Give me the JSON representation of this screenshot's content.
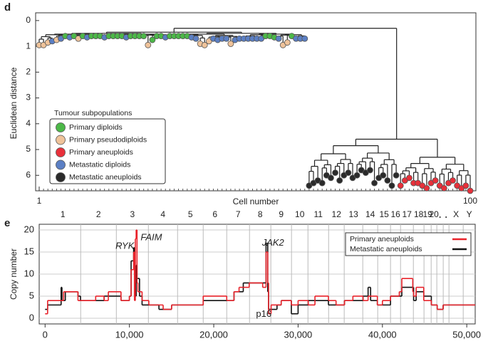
{
  "chart_data": [
    {
      "type": "dendrogram",
      "label": "d",
      "ylabel": "Euclidean distance",
      "xlabel": "Cell number",
      "ylim": [
        -0.3,
        6.6
      ],
      "yticks": [
        0,
        1,
        2,
        3,
        4,
        5,
        6
      ],
      "xlim": [
        1,
        100
      ],
      "xticks": [
        1,
        100
      ],
      "legend_title": "Tumour subpopulations",
      "legend": "lower left",
      "groups": [
        {
          "name": "Primary diploids",
          "color": "#4cb848"
        },
        {
          "name": "Primary pseudodiploids",
          "color": "#efc39a"
        },
        {
          "name": "Primary aneuploids",
          "color": "#e8303a"
        },
        {
          "name": "Metastatic diploids",
          "color": "#5b7fc4"
        },
        {
          "name": "Metastatic aneuploids",
          "color": "#2a2a2a"
        }
      ],
      "leaf_groups": [
        1,
        1,
        1,
        3,
        1,
        3,
        0,
        3,
        0,
        1,
        0,
        3,
        0,
        0,
        0,
        3,
        0,
        0,
        0,
        0,
        3,
        0,
        0,
        0,
        0,
        1,
        0,
        0,
        0,
        3,
        0,
        0,
        0,
        0,
        0,
        3,
        3,
        1,
        1,
        1,
        3,
        3,
        3,
        3,
        1,
        3,
        3,
        3,
        3,
        3,
        3,
        3,
        0,
        0,
        0,
        3,
        1,
        1,
        0,
        3,
        3,
        3,
        4,
        4,
        4,
        4,
        4,
        4,
        4,
        4,
        4,
        4,
        4,
        4,
        4,
        4,
        4,
        4,
        4,
        4,
        4,
        4,
        4,
        2,
        2,
        2,
        2,
        2,
        2,
        2,
        2,
        2,
        2,
        2,
        2,
        2,
        2,
        2,
        2,
        2
      ],
      "leaf_distances": [
        0.95,
        0.95,
        0.85,
        0.8,
        0.75,
        0.7,
        0.6,
        0.65,
        0.6,
        0.7,
        0.6,
        0.65,
        0.6,
        0.6,
        0.6,
        0.65,
        0.6,
        0.6,
        0.6,
        0.6,
        0.65,
        0.6,
        0.6,
        0.6,
        0.6,
        0.95,
        0.75,
        0.6,
        0.6,
        0.65,
        0.6,
        0.6,
        0.6,
        0.6,
        0.6,
        0.65,
        0.7,
        0.9,
        0.95,
        0.8,
        0.7,
        0.75,
        0.7,
        0.7,
        0.9,
        0.75,
        0.7,
        0.7,
        0.7,
        0.7,
        0.7,
        0.7,
        0.6,
        0.6,
        0.65,
        0.7,
        0.95,
        0.85,
        0.6,
        0.7,
        0.7,
        0.7,
        6.4,
        6.3,
        6.2,
        6.3,
        6.0,
        6.1,
        5.9,
        6.2,
        6.0,
        5.9,
        6.1,
        6.0,
        5.8,
        5.9,
        5.8,
        6.3,
        6.1,
        6.0,
        6.2,
        6.4,
        6.0,
        6.4,
        6.2,
        6.1,
        6.3,
        6.3,
        6.4,
        6.5,
        6.3,
        6.2,
        6.4,
        6.5,
        6.3,
        6.2,
        6.4,
        6.5,
        6.4,
        6.6
      ],
      "clusters": [
        {
          "first": 1,
          "last": 62,
          "height": 0.45
        },
        {
          "first": 63,
          "last": 83,
          "height": 4.85
        },
        {
          "first": 84,
          "last": 100,
          "height": 5.3
        }
      ],
      "right_join_height": 4.6,
      "root_height": 0.3
    },
    {
      "type": "step",
      "label": "e",
      "ylabel": "Copy number",
      "ylim": [
        -1.3,
        21.3
      ],
      "yticks": [
        0,
        5,
        10,
        15,
        20
      ],
      "xlim": [
        -700,
        51000
      ],
      "xticks": [
        0,
        {
          "value": 10000,
          "label": "10,000"
        },
        {
          "value": 20000,
          "label": "20,000"
        },
        {
          "value": 30000,
          "label": "30,000"
        },
        {
          "value": 40000,
          "label": "40,000"
        },
        {
          "value": 50000,
          "label": "50,000"
        }
      ],
      "chromosome_names": [
        "1",
        "2",
        "3",
        "4",
        "5",
        "6",
        "7",
        "8",
        "9",
        "10",
        "11",
        "12",
        "13",
        "14",
        "15",
        "16",
        "17",
        "18",
        "19",
        "20",
        null,
        null,
        "X",
        "Y"
      ],
      "chromosome_starts": [
        0,
        4220,
        8450,
        12250,
        15710,
        18750,
        21540,
        24240,
        26770,
        29220,
        31170,
        33620,
        35470,
        37670,
        39440,
        40960,
        42150,
        43670,
        44930,
        45780,
        46450,
        47210,
        47890,
        49580
      ],
      "legend": "upper right",
      "grid": true,
      "series": [
        {
          "name": "Metastatic aneuploids",
          "color": "#111111",
          "bins": [
            0,
            300,
            1900,
            2000,
            2400,
            3900,
            4200,
            6000,
            7000,
            9000,
            10000,
            10200,
            10500,
            10600,
            10800,
            10900,
            11200,
            11500,
            12300,
            13500,
            15000,
            18750,
            21540,
            22400,
            23500,
            25800,
            26200,
            26400,
            26500,
            27500,
            28000,
            29200,
            30000,
            31200,
            33600,
            34500,
            35500,
            36500,
            37700,
            38300,
            38600,
            39400,
            40960,
            42300,
            43700,
            44000,
            44900,
            45800,
            46500,
            47200,
            51000
          ],
          "values": [
            2,
            3,
            7,
            4,
            6,
            5,
            4,
            4,
            5,
            4,
            5,
            13,
            16,
            5,
            12,
            9,
            5,
            3,
            3,
            2,
            3,
            4,
            4,
            6,
            8,
            8,
            17,
            6,
            2,
            3,
            4,
            1,
            3,
            4,
            3,
            3,
            4,
            4,
            5,
            7,
            4,
            3,
            5,
            7,
            4,
            6,
            5,
            3,
            2,
            3
          ]
        },
        {
          "name": "Primary aneuploids",
          "color": "#e8222a",
          "bins": [
            0,
            300,
            2200,
            3900,
            6000,
            7000,
            7500,
            9000,
            10000,
            10200,
            10500,
            10600,
            10700,
            10800,
            10900,
            11000,
            11500,
            12300,
            14000,
            15000,
            18750,
            21540,
            22400,
            23000,
            24200,
            25800,
            26200,
            26400,
            26500,
            26800,
            28000,
            29200,
            30000,
            31200,
            32000,
            33600,
            34500,
            35500,
            36500,
            37700,
            38300,
            39400,
            40000,
            40960,
            42000,
            42300,
            43600,
            43700,
            44000,
            44900,
            45800,
            46500,
            47200,
            51000
          ],
          "values": [
            1,
            4,
            6,
            4,
            5,
            4,
            6,
            4,
            5,
            11,
            15,
            4,
            18,
            20,
            8,
            6,
            4,
            3,
            2,
            3,
            5,
            4,
            6,
            7,
            8,
            7,
            15,
            8,
            1,
            3,
            4,
            3,
            4,
            3,
            5,
            4,
            3,
            4,
            5,
            4,
            5,
            3,
            4,
            5,
            6,
            9,
            6,
            5,
            7,
            4,
            3,
            2,
            3
          ]
        }
      ],
      "annotations": [
        {
          "text": "RYK",
          "x": 9460,
          "y": 16.3,
          "italic": true
        },
        {
          "text": "FAIM",
          "x": 12600,
          "y": 18.2,
          "italic": true
        },
        {
          "text": "JAK2",
          "x": 27030,
          "y": 17,
          "italic": true
        },
        {
          "text": "p16",
          "x": 25930,
          "y": 0.9,
          "italic": false
        }
      ]
    }
  ]
}
